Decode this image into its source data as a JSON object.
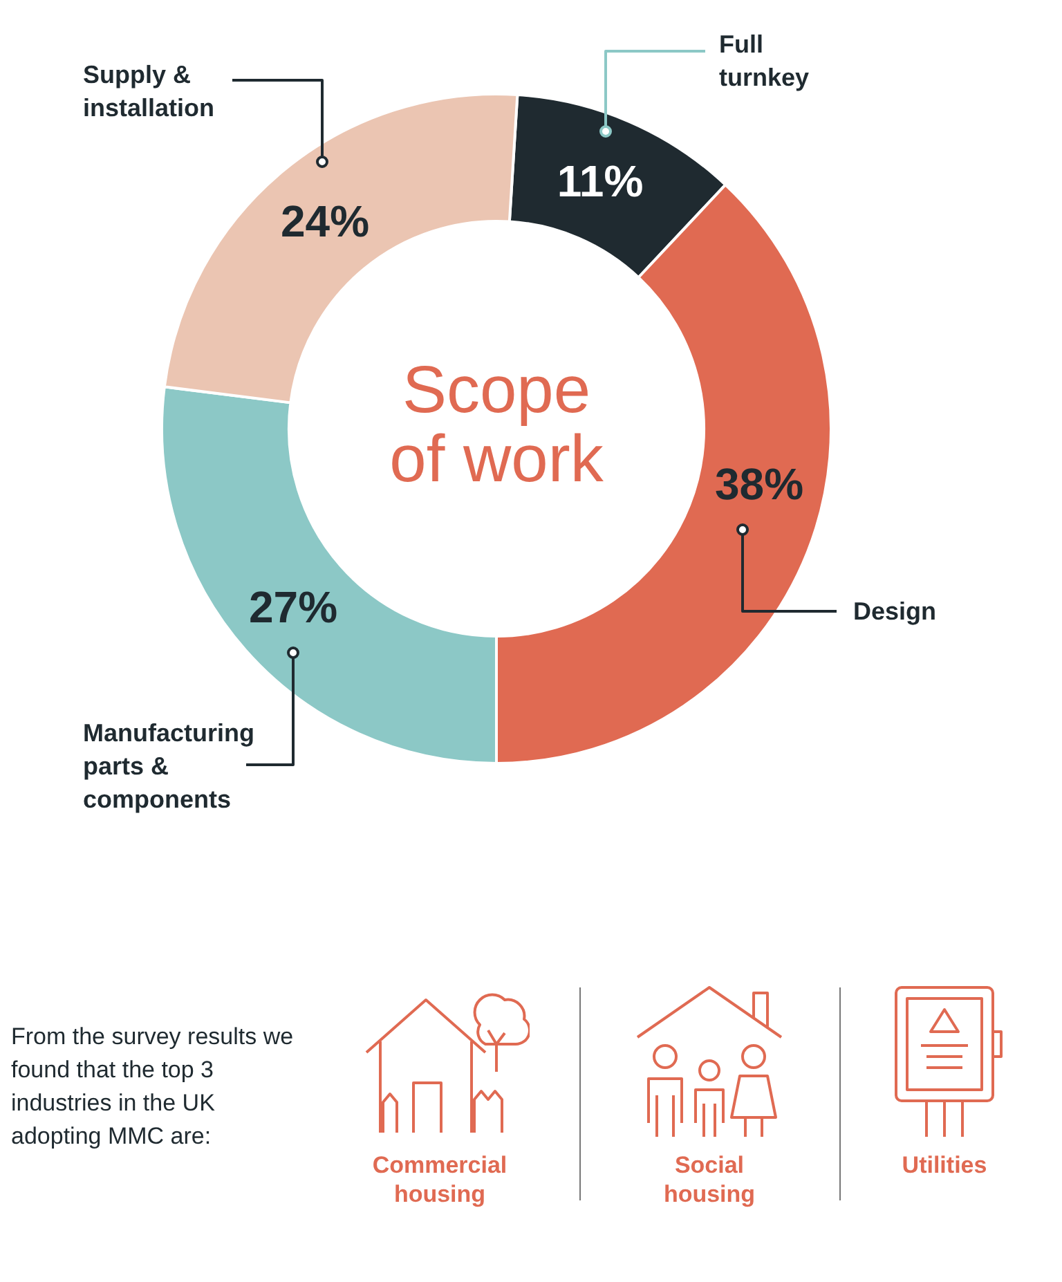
{
  "chart_data": {
    "type": "donut",
    "title": "Scope of work",
    "categories": [
      "Full turnkey",
      "Design",
      "Manufacturing parts & components",
      "Supply & installation"
    ],
    "values": [
      11,
      38,
      27,
      24
    ],
    "colors": [
      "#1f2a30",
      "#e06a52",
      "#8cc8c6",
      "#ebc5b2"
    ],
    "value_labels": [
      "11%",
      "38%",
      "27%",
      "24%"
    ],
    "legend": false,
    "annotations": [
      "From the survey results we found that the top 3 industries in the UK adopting MMC are:",
      "Commercial housing",
      "Social housing",
      "Utilities"
    ]
  }
}
